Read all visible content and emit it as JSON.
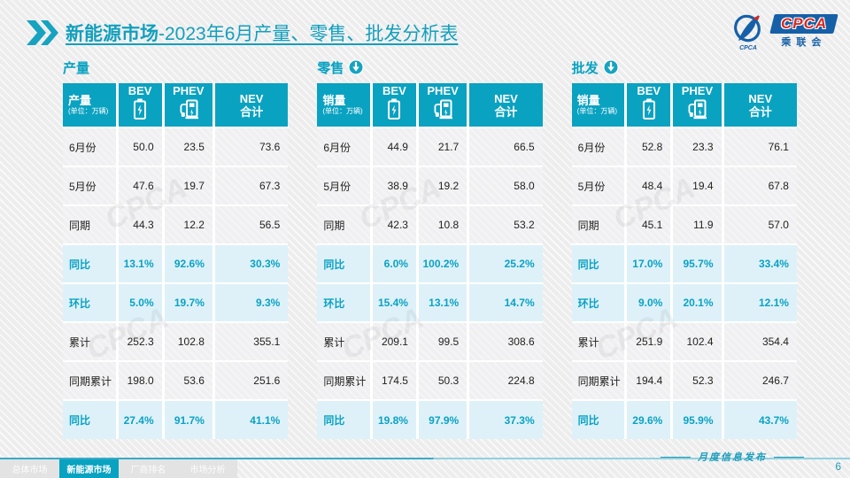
{
  "title": {
    "bold": "新能源市场",
    "rest": "-2023年6月产量、零售、批发分析表"
  },
  "logo": {
    "acronym": "CPCA",
    "cn_name": "乘联会"
  },
  "colors": {
    "accent_teal": "#0aa2c1",
    "highlight_row_bg": "#def1f8",
    "highlight_text": "#0aa2c4",
    "logo_blue": "#1660a8",
    "logo_red": "#d42a22"
  },
  "icons": {
    "title_chevrons": "double-chevron-right-icon",
    "section_arrow": "circle-down-arrow-icon",
    "bev": "battery-icon",
    "phev": "charging-station-icon",
    "logo_emblem": "cpca-emblem-icon"
  },
  "watermark_text": "CPCA",
  "tables": [
    {
      "section_label": "产量",
      "has_arrow": false,
      "corner_label": "产量",
      "corner_unit": "(单位：万辆)",
      "columns": [
        "BEV",
        "PHEV"
      ],
      "total_column": {
        "line1": "NEV",
        "line2": "合计"
      },
      "rows": [
        {
          "label": "6月份",
          "values": [
            "50.0",
            "23.5",
            "73.6"
          ],
          "highlight": false
        },
        {
          "label": "5月份",
          "values": [
            "47.6",
            "19.7",
            "67.3"
          ],
          "highlight": false
        },
        {
          "label": "同期",
          "values": [
            "44.3",
            "12.2",
            "56.5"
          ],
          "highlight": false
        },
        {
          "label": "同比",
          "values": [
            "13.1%",
            "92.6%",
            "30.3%"
          ],
          "highlight": true
        },
        {
          "label": "环比",
          "values": [
            "5.0%",
            "19.7%",
            "9.3%"
          ],
          "highlight": true
        },
        {
          "label": "累计",
          "values": [
            "252.3",
            "102.8",
            "355.1"
          ],
          "highlight": false
        },
        {
          "label": "同期累计",
          "values": [
            "198.0",
            "53.6",
            "251.6"
          ],
          "highlight": false
        },
        {
          "label": "同比",
          "values": [
            "27.4%",
            "91.7%",
            "41.1%"
          ],
          "highlight": true
        }
      ]
    },
    {
      "section_label": "零售",
      "has_arrow": true,
      "corner_label": "销量",
      "corner_unit": "(单位：万辆)",
      "columns": [
        "BEV",
        "PHEV"
      ],
      "total_column": {
        "line1": "NEV",
        "line2": "合计"
      },
      "rows": [
        {
          "label": "6月份",
          "values": [
            "44.9",
            "21.7",
            "66.5"
          ],
          "highlight": false
        },
        {
          "label": "5月份",
          "values": [
            "38.9",
            "19.2",
            "58.0"
          ],
          "highlight": false
        },
        {
          "label": "同期",
          "values": [
            "42.3",
            "10.8",
            "53.2"
          ],
          "highlight": false
        },
        {
          "label": "同比",
          "values": [
            "6.0%",
            "100.2%",
            "25.2%"
          ],
          "highlight": true
        },
        {
          "label": "环比",
          "values": [
            "15.4%",
            "13.1%",
            "14.7%"
          ],
          "highlight": true
        },
        {
          "label": "累计",
          "values": [
            "209.1",
            "99.5",
            "308.6"
          ],
          "highlight": false
        },
        {
          "label": "同期累计",
          "values": [
            "174.5",
            "50.3",
            "224.8"
          ],
          "highlight": false
        },
        {
          "label": "同比",
          "values": [
            "19.8%",
            "97.9%",
            "37.3%"
          ],
          "highlight": true
        }
      ]
    },
    {
      "section_label": "批发",
      "has_arrow": true,
      "corner_label": "销量",
      "corner_unit": "(单位：万辆)",
      "columns": [
        "BEV",
        "PHEV"
      ],
      "total_column": {
        "line1": "NEV",
        "line2": "合计"
      },
      "rows": [
        {
          "label": "6月份",
          "values": [
            "52.8",
            "23.3",
            "76.1"
          ],
          "highlight": false
        },
        {
          "label": "5月份",
          "values": [
            "48.4",
            "19.4",
            "67.8"
          ],
          "highlight": false
        },
        {
          "label": "同期",
          "values": [
            "45.1",
            "11.9",
            "57.0"
          ],
          "highlight": false
        },
        {
          "label": "同比",
          "values": [
            "17.0%",
            "95.7%",
            "33.4%"
          ],
          "highlight": true
        },
        {
          "label": "环比",
          "values": [
            "9.0%",
            "20.1%",
            "12.1%"
          ],
          "highlight": true
        },
        {
          "label": "累计",
          "values": [
            "251.9",
            "102.4",
            "354.4"
          ],
          "highlight": false
        },
        {
          "label": "同期累计",
          "values": [
            "194.4",
            "52.3",
            "246.7"
          ],
          "highlight": false
        },
        {
          "label": "同比",
          "values": [
            "29.6%",
            "95.9%",
            "43.7%"
          ],
          "highlight": true
        }
      ]
    }
  ],
  "footer": {
    "tabs": [
      {
        "label": "总体市场",
        "active": false
      },
      {
        "label": "新能源市场",
        "active": true
      },
      {
        "label": "厂商排名",
        "active": false
      },
      {
        "label": "市场分析",
        "active": false
      }
    ],
    "caption": "月度信息发布",
    "page": "6"
  }
}
